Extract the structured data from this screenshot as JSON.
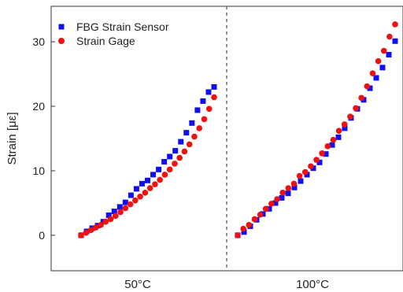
{
  "chart_data": {
    "type": "scatter",
    "ylabel": "Strain [με]",
    "ylim": [
      -5.5,
      35.5
    ],
    "yticks": [
      0,
      10,
      20,
      30
    ],
    "categories": [
      "50°C",
      "100°C"
    ],
    "divider": "dashed vertical line between the two groups",
    "legend_position": "top-left",
    "grid": false,
    "series": [
      {
        "name": "FBG Strain Sensor",
        "marker": "square",
        "color": "#1010ee",
        "groups": [
          [
            0,
            0.6,
            1.1,
            1.5,
            2.1,
            3.1,
            3.7,
            4.4,
            5.1,
            6.2,
            7.2,
            8.0,
            8.5,
            9.4,
            10.2,
            11.4,
            12.2,
            13.1,
            14.5,
            15.9,
            17.4,
            19.4,
            20.8,
            22.2,
            23.0
          ],
          [
            0,
            0.5,
            1.4,
            2.4,
            3.3,
            4.1,
            5.0,
            5.8,
            6.5,
            7.4,
            8.4,
            9.4,
            10.4,
            11.3,
            12.6,
            14.0,
            15.2,
            16.6,
            18.2,
            19.6,
            21.0,
            22.8,
            24.4,
            26.0,
            28.0,
            30.1
          ]
        ]
      },
      {
        "name": "Strain Gage",
        "marker": "circle",
        "color": "#ee1111",
        "groups": [
          [
            0,
            0.4,
            0.8,
            1.2,
            1.6,
            2.1,
            2.5,
            3.0,
            3.6,
            4.2,
            4.8,
            5.4,
            6.0,
            6.6,
            7.3,
            7.9,
            8.6,
            9.4,
            10.2,
            11.1,
            12.0,
            13.0,
            14.1,
            15.3,
            16.6,
            18.0,
            19.6,
            21.4
          ],
          [
            0,
            1.0,
            1.6,
            2.5,
            3.2,
            4.1,
            4.9,
            5.6,
            6.6,
            7.3,
            8.0,
            9.2,
            9.8,
            10.7,
            11.7,
            12.7,
            13.8,
            14.8,
            16.2,
            17.2,
            18.4,
            19.7,
            21.3,
            23.1,
            25.1,
            27.0,
            28.6,
            30.8,
            32.7
          ]
        ]
      }
    ]
  }
}
